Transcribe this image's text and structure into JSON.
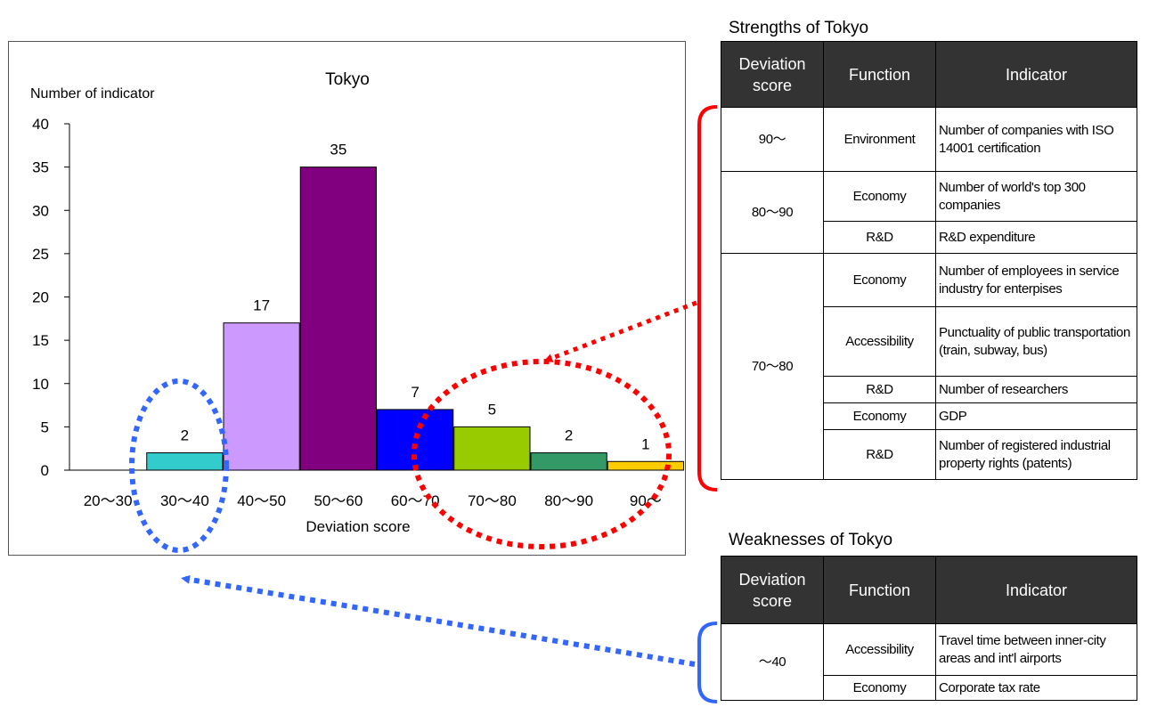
{
  "chart_data": {
    "type": "bar",
    "title": "Tokyo",
    "ylabel": "Number of indicator",
    "xlabel": "Deviation score",
    "categories": [
      "20～30",
      "30～40",
      "40～50",
      "50～60",
      "60～70",
      "70～80",
      "80～90",
      "90～"
    ],
    "values": [
      0,
      2,
      17,
      35,
      7,
      5,
      2,
      1
    ],
    "data_labels": [
      "",
      "2",
      "17",
      "35",
      "7",
      "5",
      "2",
      "1"
    ],
    "colors": [
      "#ffffff",
      "#33cccc",
      "#cc99ff",
      "#800080",
      "#0000ff",
      "#99cc00",
      "#339966",
      "#ffcc00"
    ],
    "ylim": [
      0,
      40
    ],
    "yticks": [
      0,
      5,
      10,
      15,
      20,
      25,
      30,
      35,
      40
    ],
    "grid": false,
    "legend": "none"
  },
  "strengths": {
    "title": "Strengths of Tokyo",
    "headers": {
      "score": "Deviation score",
      "function": "Function",
      "indicator": "Indicator"
    },
    "groups": [
      {
        "score": "90～",
        "rows": [
          {
            "function": "Environment",
            "indicator": "Number of companies with ISO 14001 certification"
          }
        ]
      },
      {
        "score": "80～90",
        "rows": [
          {
            "function": "Economy",
            "indicator": "Number of world's top 300 companies"
          },
          {
            "function": "R&D",
            "indicator": "R&D expenditure"
          }
        ]
      },
      {
        "score": "70～80",
        "rows": [
          {
            "function": "Economy",
            "indicator": "Number of employees in service industry for enterpises"
          },
          {
            "function": "Accessibility",
            "indicator": "Punctuality of public transportation (train, subway, bus)"
          },
          {
            "function": "R&D",
            "indicator": "Number of researchers"
          },
          {
            "function": "Economy",
            "indicator": "GDP"
          },
          {
            "function": "R&D",
            "indicator": "Number of registered industrial property rights (patents)"
          }
        ]
      }
    ]
  },
  "weaknesses": {
    "title": "Weaknesses of Tokyo",
    "headers": {
      "score": "Deviation score",
      "function": "Function",
      "indicator": "Indicator"
    },
    "groups": [
      {
        "score": "～40",
        "rows": [
          {
            "function": "Accessibility",
            "indicator": "Travel time between inner-city areas and int'l airports"
          },
          {
            "function": "Economy",
            "indicator": "Corporate tax rate"
          }
        ]
      }
    ]
  },
  "annotation_colors": {
    "strengths": "#ff0000",
    "weaknesses": "#3366ff"
  }
}
